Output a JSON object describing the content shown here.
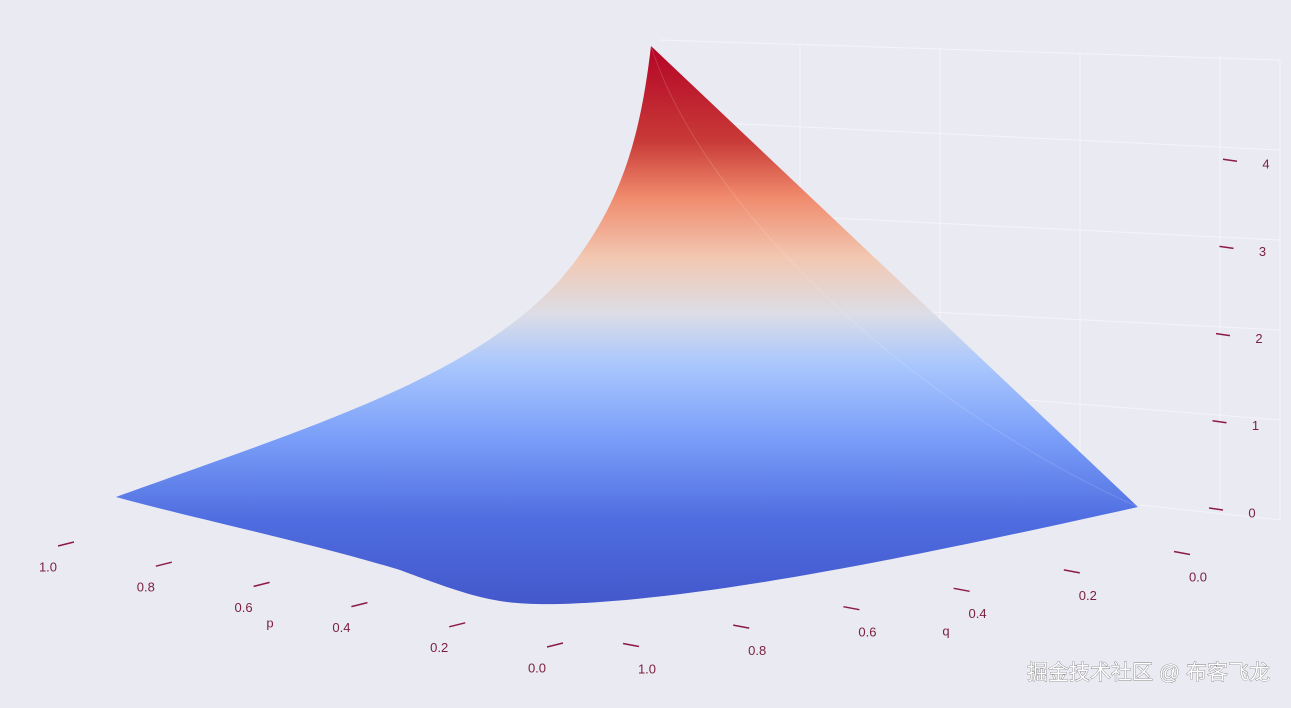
{
  "chart_data": {
    "type": "surface",
    "xlabel": "p",
    "ylabel": "q",
    "xticks": [
      {
        "value": 1,
        "label": "1.0"
      },
      0.8,
      0.6,
      0.4,
      0.2,
      {
        "value": 0,
        "label": "0.0"
      }
    ],
    "yticks": [
      {
        "value": 1,
        "label": "1.0"
      },
      0.8,
      0.6,
      0.4,
      0.2,
      {
        "value": 0,
        "label": "0.0"
      }
    ],
    "zticks": [
      0,
      1,
      2,
      3,
      4
    ],
    "colormap": "coolwarm"
  },
  "watermark": "掘金技术社区 @ 布客飞龙"
}
